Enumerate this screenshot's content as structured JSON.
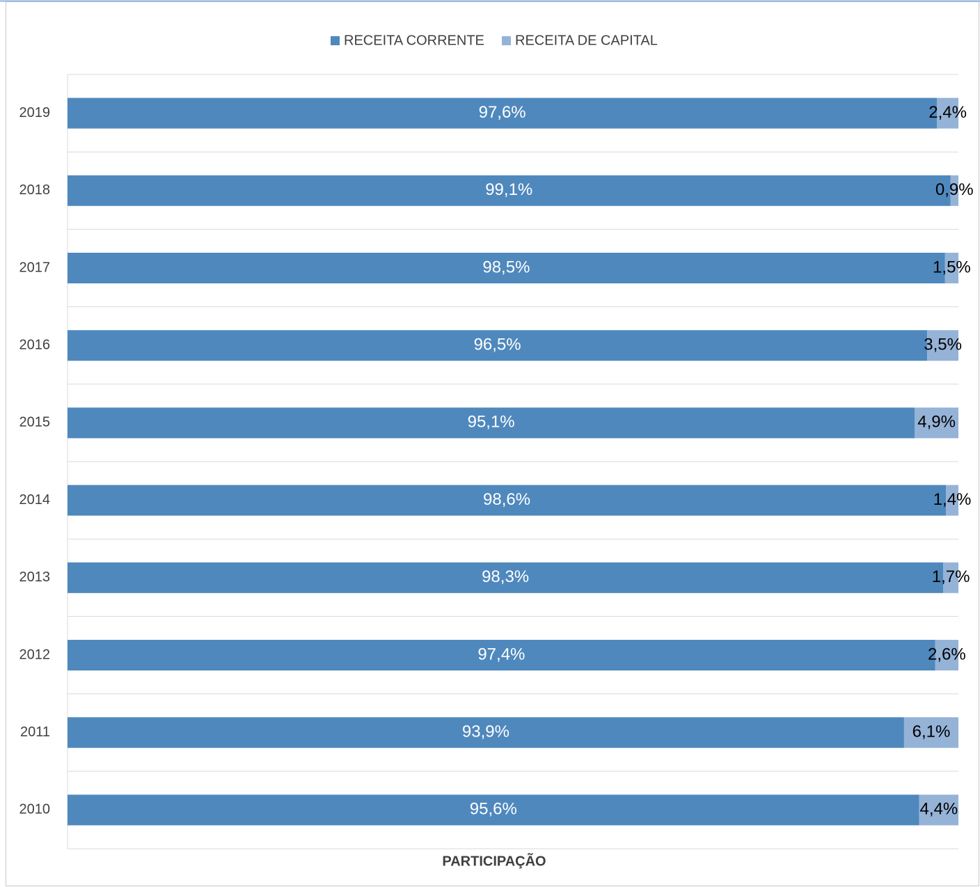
{
  "chart_data": {
    "type": "stacked-bar-horizontal",
    "x_label": "PARTICIPAÇÃO",
    "categories": [
      "2019",
      "2018",
      "2017",
      "2016",
      "2015",
      "2014",
      "2013",
      "2012",
      "2011",
      "2010"
    ],
    "series": [
      {
        "name": "RECEITA CORRENTE",
        "color": "#4f88bd",
        "label_color": "#ffffff",
        "values": [
          97.6,
          99.1,
          98.5,
          96.5,
          95.1,
          98.6,
          98.3,
          97.4,
          93.9,
          95.6
        ],
        "value_labels": [
          "97,6%",
          "99,1%",
          "98,5%",
          "96,5%",
          "95,1%",
          "98,6%",
          "98,3%",
          "97,4%",
          "93,9%",
          "95,6%"
        ]
      },
      {
        "name": "RECEITA DE CAPITAL",
        "color": "#95b3d7",
        "label_color": "#000000",
        "values": [
          2.4,
          0.9,
          1.5,
          3.5,
          4.9,
          1.4,
          1.7,
          2.6,
          6.1,
          4.4
        ],
        "value_labels": [
          "2,4%",
          "0,9%",
          "1,5%",
          "3,5%",
          "4,9%",
          "1,4%",
          "1,7%",
          "2,6%",
          "6,1%",
          "4,4%"
        ]
      }
    ],
    "xlim": [
      0,
      100
    ],
    "grid": true,
    "legend": "top"
  }
}
